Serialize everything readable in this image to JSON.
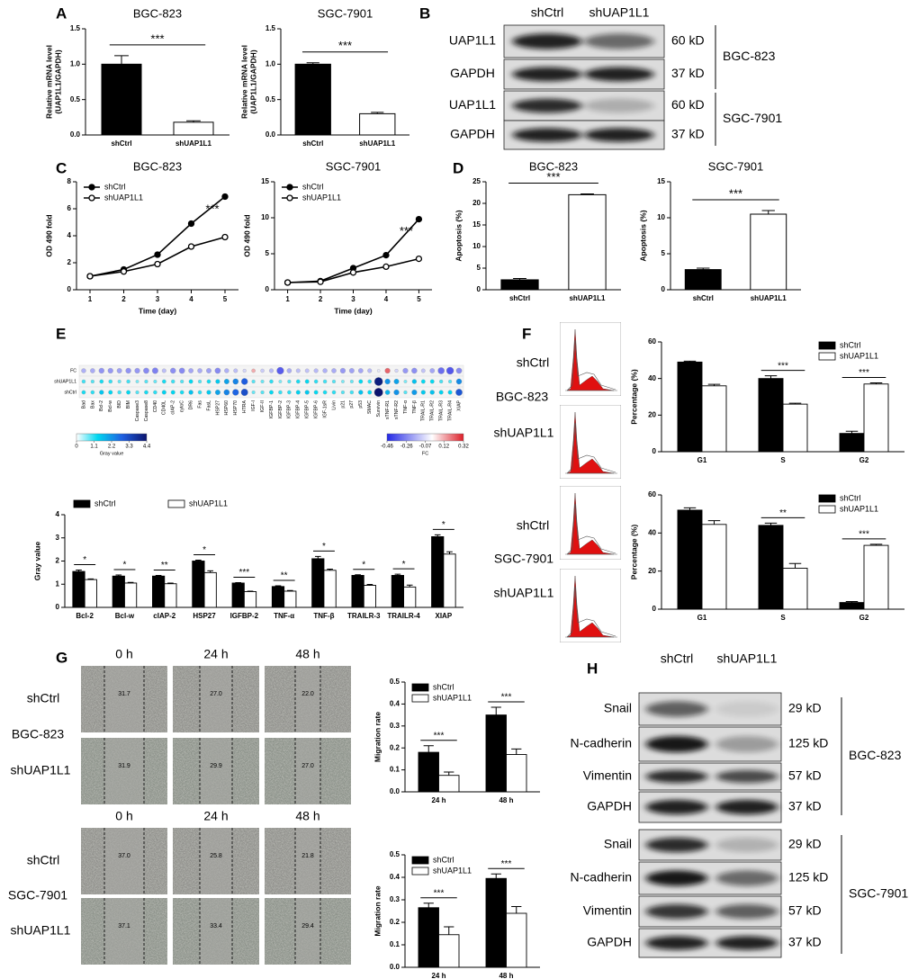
{
  "panel_labels": [
    "A",
    "B",
    "C",
    "D",
    "E",
    "F",
    "G",
    "H"
  ],
  "blot_B": {
    "lanes": [
      "shCtrl",
      "shUAP1L1"
    ],
    "rows": [
      {
        "protein": "UAP1L1",
        "size": "60 kD"
      },
      {
        "protein": "GAPDH",
        "size": "37 kD"
      },
      {
        "protein": "UAP1L1",
        "size": "60 kD"
      },
      {
        "protein": "GAPDH",
        "size": "37 kD"
      }
    ],
    "groups": [
      "BGC-823",
      "SGC-7901"
    ]
  },
  "blot_H": {
    "lanes": [
      "shCtrl",
      "shUAP1L1"
    ],
    "rows": [
      {
        "protein": "Snail",
        "size": "29 kD"
      },
      {
        "protein": "N-cadherin",
        "size": "125 kD"
      },
      {
        "protein": "Vimentin",
        "size": "57 kD"
      },
      {
        "protein": "GAPDH",
        "size": "37 kD"
      },
      {
        "protein": "Snail",
        "size": "29 kD"
      },
      {
        "protein": "N-cadherin",
        "size": "125 kD"
      },
      {
        "protein": "Vimentin",
        "size": "57 kD"
      },
      {
        "protein": "GAPDH",
        "size": "37 kD"
      }
    ],
    "groups": [
      "BGC-823",
      "SGC-7901"
    ]
  },
  "flow_F": {
    "labels": [
      "shCtrl",
      "BGC-823",
      "shUAP1L1",
      "shCtrl",
      "SGC-7901",
      "shUAP1L1"
    ]
  },
  "wound_G": {
    "blocks": [
      {
        "columns": [
          "0 h",
          "24 h",
          "48 h"
        ],
        "row_labels": [
          "shCtrl",
          "BGC-823",
          "shUAP1L1"
        ],
        "widths": [
          [
            "31.7",
            "27.0",
            "22.0"
          ],
          [
            "31.9",
            "29.9",
            "27.0"
          ]
        ]
      },
      {
        "columns": [
          "0 h",
          "24 h",
          "48 h"
        ],
        "row_labels": [
          "shCtrl",
          "SGC-7901",
          "shUAP1L1"
        ],
        "widths": [
          [
            "37.0",
            "25.8",
            "21.8"
          ],
          [
            "37.1",
            "33.4",
            "29.4"
          ]
        ]
      }
    ]
  },
  "chart_data": [
    {
      "type": "bar",
      "title": "BGC-823",
      "ylabel": [
        "Relative mRNA level",
        "(UAP1L1/GAPDH)"
      ],
      "categories": [
        "shCtrl",
        "shUAP1L1"
      ],
      "values": [
        1.0,
        0.18
      ],
      "errors": [
        0.12,
        0.02
      ],
      "colors": [
        "#000000",
        "#ffffff"
      ],
      "ylim": [
        0,
        1.5
      ],
      "yticks": [
        {
          "value": 0,
          "label": "0.0"
        },
        {
          "value": 0.5,
          "label": "0.5"
        },
        {
          "value": 1,
          "label": "1.0"
        },
        {
          "value": 1.5,
          "label": "1.5"
        }
      ],
      "significance": "***"
    },
    {
      "type": "bar",
      "title": "SGC-7901",
      "ylabel": [
        "Relative mRNA level",
        "(UAP1L1/GAPDH)"
      ],
      "categories": [
        "shCtrl",
        "shUAP1L1"
      ],
      "values": [
        1.0,
        0.3
      ],
      "errors": [
        0.02,
        0.02
      ],
      "colors": [
        "#000000",
        "#ffffff"
      ],
      "ylim": [
        0,
        1.5
      ],
      "yticks": [
        {
          "value": 0,
          "label": "0.0"
        },
        {
          "value": 0.5,
          "label": "0.5"
        },
        {
          "value": 1,
          "label": "1.0"
        },
        {
          "value": 1.5,
          "label": "1.5"
        }
      ],
      "significance": "***"
    },
    {
      "type": "line",
      "title": "BGC-823",
      "xlabel": "Time (day)",
      "ylabel": "OD 490 fold",
      "x": [
        1,
        2,
        3,
        4,
        5
      ],
      "series": [
        {
          "name": "shCtrl",
          "color": "#000000",
          "marker_fill": "#000000",
          "values": [
            1.0,
            1.5,
            2.6,
            4.9,
            6.9
          ]
        },
        {
          "name": "shUAP1L1",
          "color": "#000000",
          "marker_fill": "#ffffff",
          "values": [
            1.0,
            1.35,
            1.9,
            3.2,
            3.9
          ]
        }
      ],
      "xlim": [
        0.6,
        5.4
      ],
      "xticks": [
        1,
        2,
        3,
        4,
        5
      ],
      "ylim": [
        0,
        8
      ],
      "yticks": [
        0,
        2,
        4,
        6,
        8
      ],
      "legend": "top-left",
      "annotation": "***"
    },
    {
      "type": "line",
      "title": "SGC-7901",
      "xlabel": "Time (day)",
      "ylabel": "OD 490 fold",
      "x": [
        1,
        2,
        3,
        4,
        5
      ],
      "series": [
        {
          "name": "shCtrl",
          "color": "#000000",
          "marker_fill": "#000000",
          "values": [
            1.0,
            1.2,
            3.0,
            4.8,
            9.8
          ]
        },
        {
          "name": "shUAP1L1",
          "color": "#000000",
          "marker_fill": "#ffffff",
          "values": [
            1.0,
            1.1,
            2.4,
            3.2,
            4.3
          ]
        }
      ],
      "xlim": [
        0.6,
        5.4
      ],
      "xticks": [
        1,
        2,
        3,
        4,
        5
      ],
      "ylim": [
        0,
        15
      ],
      "yticks": [
        0,
        5,
        10,
        15
      ],
      "legend": "top-left",
      "annotation": "***"
    },
    {
      "type": "bar",
      "title": "BGC-823",
      "ylabel": "Apoptosis (%)",
      "categories": [
        "shCtrl",
        "shUAP1L1"
      ],
      "values": [
        2.3,
        22.0
      ],
      "errors": [
        0.3,
        0.2
      ],
      "colors": [
        "#000000",
        "#ffffff"
      ],
      "ylim": [
        0,
        25
      ],
      "yticks": [
        0,
        5,
        10,
        15,
        20,
        25
      ],
      "significance": "***"
    },
    {
      "type": "bar",
      "title": "SGC-7901",
      "ylabel": "Apoptosis (%)",
      "categories": [
        "shCtrl",
        "shUAP1L1"
      ],
      "values": [
        2.8,
        10.5
      ],
      "errors": [
        0.2,
        0.5
      ],
      "colors": [
        "#000000",
        "#ffffff"
      ],
      "ylim": [
        0,
        15
      ],
      "yticks": [
        0,
        5,
        10,
        15
      ],
      "significance": "***"
    },
    {
      "type": "dotmatrix",
      "categories": [
        "Bad",
        "Bax",
        "Bcl-2",
        "Bcl-w",
        "BID",
        "BIM",
        "Caspase3",
        "Caspase8",
        "CD40",
        "CD40L",
        "cIAP-2",
        "cytoC",
        "DR6",
        "Fas",
        "FasL",
        "HSP27",
        "HSP60",
        "HSP70",
        "HTRA",
        "IGF-I",
        "IGF-II",
        "IGFBP-1",
        "IGFBP-2",
        "IGFBP-3",
        "IGFBP-4",
        "IGFBP-5",
        "IGFBP-6",
        "IGF-1sR",
        "Livin",
        "p21",
        "p27",
        "p53",
        "SMAC",
        "Survivin",
        "sTNF-R1",
        "sTNF-R2",
        "TNF-α",
        "TNF-β",
        "TRAIL-R1",
        "TRAIL-R2",
        "TRAIL-R3",
        "TRAIL-R4",
        "XIAP"
      ],
      "rows": [
        {
          "name": "FC",
          "values": [
            -0.17,
            -0.18,
            -0.23,
            -0.22,
            -0.2,
            -0.23,
            -0.22,
            -0.25,
            -0.27,
            -0.14,
            -0.24,
            -0.25,
            -0.19,
            -0.18,
            -0.2,
            -0.25,
            -0.17,
            -0.14,
            -0.09,
            0.12,
            -0.11,
            -0.15,
            -0.35,
            -0.18,
            -0.14,
            -0.13,
            -0.15,
            -0.17,
            -0.18,
            -0.22,
            -0.2,
            -0.19,
            -0.15,
            -0.05,
            0.22,
            -0.09,
            -0.22,
            -0.24,
            -0.13,
            -0.19,
            -0.31,
            -0.36,
            -0.25
          ]
        },
        {
          "name": "shUAP1L1",
          "values": [
            1.0,
            0.9,
            1.2,
            1.05,
            0.8,
            1.0,
            0.7,
            0.9,
            0.8,
            1.2,
            1.02,
            0.9,
            1.3,
            0.9,
            1.2,
            1.5,
            2.0,
            2.4,
            2.9,
            0.9,
            0.8,
            1.1,
            0.68,
            0.9,
            1.2,
            1.3,
            1.1,
            1.0,
            0.9,
            0.7,
            0.8,
            1.3,
            1.1,
            4.2,
            2.2,
            2.0,
            0.7,
            1.6,
            1.3,
            1.3,
            0.95,
            0.88,
            2.3
          ]
        },
        {
          "name": "shCtrl",
          "values": [
            1.2,
            1.1,
            1.55,
            1.35,
            1.0,
            1.3,
            0.9,
            1.2,
            1.1,
            1.4,
            1.35,
            1.2,
            1.6,
            1.1,
            1.5,
            2.0,
            2.4,
            2.8,
            3.2,
            0.8,
            0.9,
            1.3,
            1.05,
            1.1,
            1.4,
            1.5,
            1.3,
            1.2,
            1.1,
            0.9,
            1.0,
            1.6,
            1.3,
            4.4,
            1.8,
            2.2,
            0.9,
            2.1,
            1.5,
            1.6,
            1.38,
            1.38,
            3.05
          ]
        }
      ],
      "colorbars": [
        {
          "label": "Gray value",
          "clim": [
            0,
            4.4
          ],
          "ticks": [
            0,
            1.1,
            2.2,
            3.3,
            4.4
          ]
        },
        {
          "label": "FC",
          "clim": [
            -0.46,
            0.32
          ],
          "ticks": [
            -0.46,
            -0.26,
            -0.07,
            0.12,
            0.32
          ]
        }
      ]
    },
    {
      "type": "bar",
      "ylabel": "Gray value",
      "categories": [
        "Bcl-2",
        "Bcl-w",
        "cIAP-2",
        "HSP27",
        "IGFBP-2",
        "TNF-α",
        "TNF-β",
        "TRAILR-3",
        "TRAILR-4",
        "XIAP"
      ],
      "series": [
        {
          "name": "shCtrl",
          "color": "#000000",
          "values": [
            1.55,
            1.35,
            1.35,
            2.0,
            1.05,
            0.9,
            2.1,
            1.38,
            1.38,
            3.05
          ],
          "errors": [
            0.06,
            0.05,
            0.03,
            0.04,
            0.02,
            0.03,
            0.1,
            0.03,
            0.05,
            0.08
          ]
        },
        {
          "name": "shUAP1L1",
          "color": "#ffffff",
          "values": [
            1.2,
            1.05,
            1.02,
            1.5,
            0.68,
            0.7,
            1.6,
            0.95,
            0.88,
            2.3
          ],
          "errors": [
            0.03,
            0.03,
            0.03,
            0.08,
            0.02,
            0.03,
            0.05,
            0.04,
            0.08,
            0.1
          ]
        }
      ],
      "ylim": [
        0,
        4
      ],
      "yticks": [
        0,
        1,
        2,
        3,
        4
      ],
      "legend": "top",
      "significance": [
        "*",
        "*",
        "**",
        "*",
        "***",
        "**",
        "*",
        "*",
        "*",
        "*"
      ]
    },
    {
      "type": "bar",
      "ylabel": "Percentage (%)",
      "categories": [
        "G1",
        "S",
        "G2"
      ],
      "series": [
        {
          "name": "shCtrl",
          "color": "#000000",
          "values": [
            49,
            40,
            10
          ],
          "errors": [
            0.5,
            1.5,
            1.2
          ]
        },
        {
          "name": "shUAP1L1",
          "color": "#ffffff",
          "values": [
            36,
            26,
            37
          ],
          "errors": [
            0.8,
            0.5,
            0.6
          ]
        }
      ],
      "ylim": [
        0,
        60
      ],
      "yticks": [
        0,
        20,
        40,
        60
      ],
      "legend": "top-right",
      "significance": [
        null,
        "***",
        "***"
      ]
    },
    {
      "type": "bar",
      "ylabel": "Percentage (%)",
      "categories": [
        "G1",
        "S",
        "G2"
      ],
      "series": [
        {
          "name": "shCtrl",
          "color": "#000000",
          "values": [
            52,
            44,
            3.5
          ],
          "errors": [
            1.2,
            1.2,
            0.5
          ]
        },
        {
          "name": "shUAP1L1",
          "color": "#ffffff",
          "values": [
            44.5,
            21.5,
            33.5
          ],
          "errors": [
            2.0,
            2.5,
            0.6
          ]
        }
      ],
      "ylim": [
        0,
        60
      ],
      "yticks": [
        0,
        20,
        40,
        60
      ],
      "legend": "top-right",
      "significance": [
        null,
        "**",
        "***"
      ]
    },
    {
      "type": "bar",
      "ylabel": "Migration rate",
      "categories": [
        "24 h",
        "48 h"
      ],
      "series": [
        {
          "name": "shCtrl",
          "color": "#000000",
          "values": [
            0.18,
            0.35
          ],
          "errors": [
            0.03,
            0.035
          ]
        },
        {
          "name": "shUAP1L1",
          "color": "#ffffff",
          "values": [
            0.075,
            0.17
          ],
          "errors": [
            0.015,
            0.025
          ]
        }
      ],
      "ylim": [
        0,
        0.5
      ],
      "yticks": [
        {
          "value": 0,
          "label": "0.0"
        },
        0.1,
        0.2,
        0.3,
        0.4,
        0.5
      ],
      "legend": "top-left",
      "significance": [
        "***",
        "***"
      ]
    },
    {
      "type": "bar",
      "ylabel": "Migration rate",
      "categories": [
        "24 h",
        "48 h"
      ],
      "series": [
        {
          "name": "shCtrl",
          "color": "#000000",
          "values": [
            0.265,
            0.395
          ],
          "errors": [
            0.02,
            0.02
          ]
        },
        {
          "name": "shUAP1L1",
          "color": "#ffffff",
          "values": [
            0.145,
            0.24
          ],
          "errors": [
            0.035,
            0.03
          ]
        }
      ],
      "ylim": [
        0,
        0.5
      ],
      "yticks": [
        {
          "value": 0,
          "label": "0.0"
        },
        0.1,
        0.2,
        0.3,
        0.4,
        0.5
      ],
      "legend": "top-left",
      "significance": [
        "***",
        "***"
      ]
    }
  ]
}
